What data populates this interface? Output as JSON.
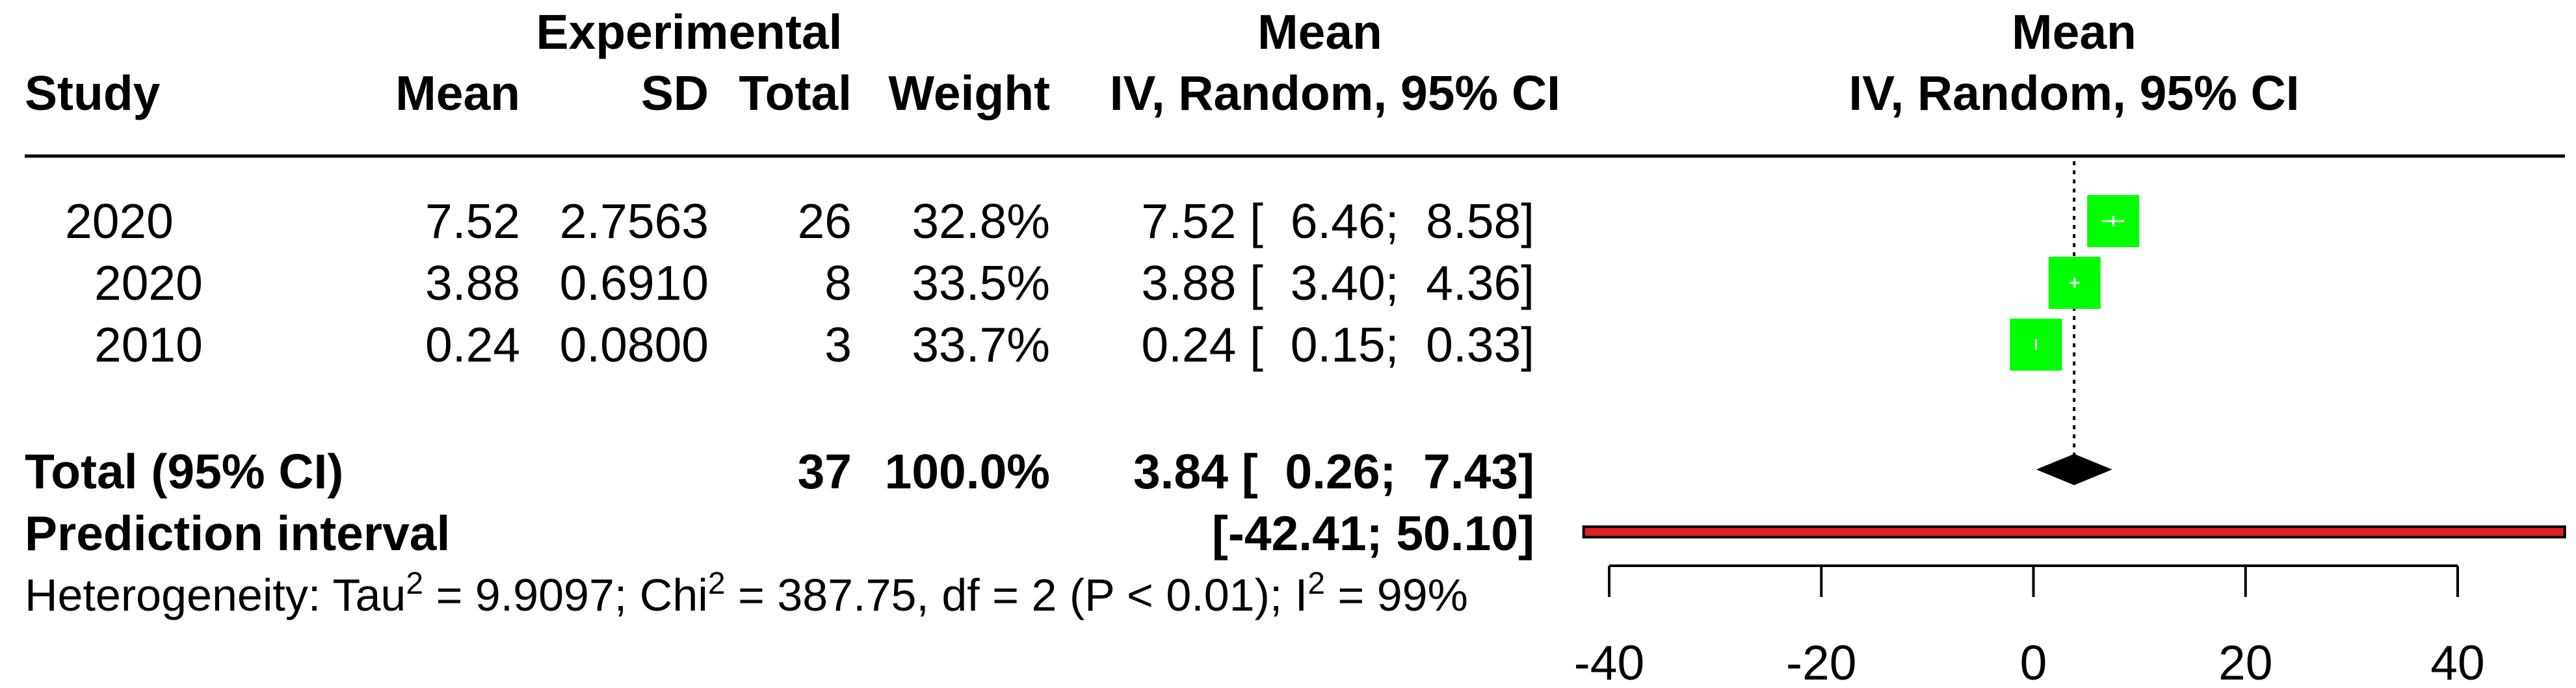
{
  "header": {
    "study": "Study",
    "experimental": "Experimental",
    "mean": "Mean",
    "sd": "SD",
    "total": "Total",
    "weight": "Weight",
    "ci_top": "Mean",
    "ci_bottom": "IV, Random, 95% CI",
    "plot_top": "Mean",
    "plot_bottom": "IV, Random, 95% CI"
  },
  "studies": [
    {
      "study": "2020",
      "mean": "7.52",
      "sd": "2.7563",
      "total": "26",
      "weight": "32.8%",
      "ci": "7.52 [  6.46;  8.58]"
    },
    {
      "study": "2020",
      "mean": "3.88",
      "sd": "0.6910",
      "total": "8",
      "weight": "33.5%",
      "ci": "3.88 [  3.40;  4.36]"
    },
    {
      "study": "2010",
      "mean": "0.24",
      "sd": "0.0800",
      "total": "3",
      "weight": "33.7%",
      "ci": "0.24 [  0.15;  0.33]"
    }
  ],
  "summary": {
    "label": "Total (95% CI)",
    "total": "37",
    "weight": "100.0%",
    "ci": "3.84 [  0.26;  7.43]"
  },
  "prediction": {
    "label": "Prediction interval",
    "ci": "[-42.41; 50.10]"
  },
  "heterogeneity": {
    "p1": "Heterogeneity: Tau",
    "p2": " = 9.9097; Chi",
    "p3": " = 387.75, df = 2 (P < 0.01); I",
    "p4": " = 99%",
    "sup": "2"
  },
  "colors": {
    "box": "#00ff00",
    "prediction": "#e02020",
    "diamond": "#000000",
    "lines": "#000000"
  },
  "chart_data": {
    "type": "forest",
    "title": "Mean IV, Random, 95% CI",
    "xlim": [
      -40,
      40
    ],
    "x_ticks": [
      -40,
      -20,
      0,
      20,
      40
    ],
    "reference_line": 3.84,
    "studies": [
      {
        "label": "2020",
        "estimate": 7.52,
        "lower": 6.46,
        "upper": 8.58,
        "weight": 32.8
      },
      {
        "label": "2020",
        "estimate": 3.88,
        "lower": 3.4,
        "upper": 4.36,
        "weight": 33.5
      },
      {
        "label": "2010",
        "estimate": 0.24,
        "lower": 0.15,
        "upper": 0.33,
        "weight": 33.7
      }
    ],
    "pooled": {
      "estimate": 3.84,
      "lower": 0.26,
      "upper": 7.43
    },
    "prediction_interval": {
      "lower": -42.41,
      "upper": 50.1
    }
  }
}
